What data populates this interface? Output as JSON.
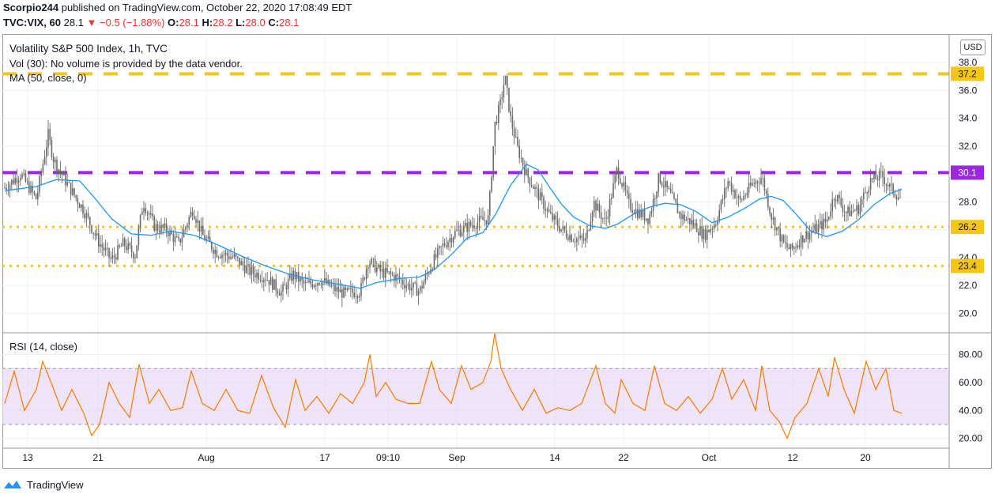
{
  "header": {
    "publisher": "Scorpio244",
    "publish_text": "published on TradingView.com, October 22, 2020 17:08:49 EDT",
    "symbol": "TVC:VIX, 60",
    "last": "28.1",
    "change": "−0.5 (−1.88%)",
    "o_label": "O:",
    "o_value": "28.1",
    "h_label": "H:",
    "h_value": "28.2",
    "l_label": "L:",
    "l_value": "28.0",
    "c_label": "C:",
    "c_value": "28.1"
  },
  "legend": {
    "title": "Volatility S&P 500 Index, 1h, TVC",
    "volume": "Vol (30): No volume is provided by the data vendor.",
    "ma": "MA (50, close, 0)",
    "rsi": "RSI (14, close)"
  },
  "currency": "USD",
  "footer": {
    "brand": "TradingView"
  },
  "colors": {
    "candle": "#6b6b6b",
    "ma_line": "#2196f3",
    "rsi_line": "#f57c00",
    "rsi_band": "#e8d9f7",
    "yellow_level": "#f5c518",
    "purple_level": "#9c27e0",
    "price_tag_yellow": "#f5c518",
    "price_tag_purple": "#9c27e0"
  },
  "chart_data": [
    {
      "type": "candlestick",
      "title": "Volatility S&P 500 Index, 1h, TVC",
      "y_ticks": [
        "20.0",
        "22.0",
        "24.0",
        "26.0",
        "28.0",
        "30.0",
        "32.0",
        "34.0",
        "36.0",
        "38.0"
      ],
      "ylim": [
        18.6,
        40.0
      ],
      "x_ticks": [
        "13",
        "21",
        "Aug",
        "17",
        "09:10",
        "Sep",
        "14",
        "22",
        "Oct",
        "12",
        "20"
      ],
      "levels": [
        {
          "value": 37.2,
          "label": "37.2",
          "style": "dashed",
          "color": "yellow"
        },
        {
          "value": 30.1,
          "label": "30.1",
          "style": "dashed",
          "color": "purple"
        },
        {
          "value": 26.2,
          "label": "26.2",
          "style": "dotted",
          "color": "yellow"
        },
        {
          "value": 23.4,
          "label": "23.4",
          "style": "dotted",
          "color": "yellow"
        }
      ],
      "close_series": [
        [
          0,
          29.0
        ],
        [
          20,
          30.0
        ],
        [
          40,
          28.2
        ],
        [
          55,
          32.8
        ],
        [
          62,
          31.0
        ],
        [
          80,
          29.2
        ],
        [
          100,
          27.4
        ],
        [
          118,
          25.2
        ],
        [
          135,
          23.8
        ],
        [
          150,
          25.0
        ],
        [
          165,
          24.2
        ],
        [
          175,
          28.0
        ],
        [
          190,
          26.2
        ],
        [
          205,
          26.0
        ],
        [
          220,
          25.0
        ],
        [
          238,
          27.5
        ],
        [
          250,
          25.6
        ],
        [
          268,
          24.4
        ],
        [
          290,
          24.0
        ],
        [
          310,
          23.0
        ],
        [
          330,
          22.6
        ],
        [
          350,
          21.5
        ],
        [
          365,
          22.8
        ],
        [
          380,
          22.0
        ],
        [
          400,
          22.4
        ],
        [
          415,
          21.8
        ],
        [
          430,
          21.4
        ],
        [
          450,
          21.6
        ],
        [
          460,
          23.8
        ],
        [
          475,
          23.0
        ],
        [
          495,
          22.6
        ],
        [
          510,
          22.0
        ],
        [
          525,
          21.6
        ],
        [
          540,
          23.5
        ],
        [
          555,
          24.9
        ],
        [
          570,
          25.8
        ],
        [
          585,
          26.2
        ],
        [
          600,
          26.6
        ],
        [
          612,
          26.8
        ],
        [
          620,
          33.5
        ],
        [
          627,
          35.0
        ],
        [
          633,
          37.0
        ],
        [
          640,
          34.0
        ],
        [
          648,
          32.0
        ],
        [
          660,
          30.0
        ],
        [
          675,
          28.5
        ],
        [
          690,
          27.0
        ],
        [
          705,
          26.0
        ],
        [
          720,
          25.4
        ],
        [
          735,
          25.2
        ],
        [
          745,
          28.0
        ],
        [
          760,
          26.5
        ],
        [
          775,
          30.4
        ],
        [
          790,
          27.8
        ],
        [
          800,
          27.3
        ],
        [
          815,
          26.8
        ],
        [
          828,
          29.8
        ],
        [
          842,
          28.5
        ],
        [
          855,
          27.0
        ],
        [
          870,
          26.5
        ],
        [
          885,
          25.6
        ],
        [
          900,
          26.6
        ],
        [
          915,
          29.5
        ],
        [
          930,
          28.0
        ],
        [
          945,
          29.2
        ],
        [
          958,
          29.8
        ],
        [
          970,
          27.0
        ],
        [
          985,
          25.0
        ],
        [
          995,
          24.5
        ],
        [
          1010,
          25.5
        ],
        [
          1025,
          26.0
        ],
        [
          1040,
          26.6
        ],
        [
          1050,
          28.6
        ],
        [
          1065,
          27.2
        ],
        [
          1080,
          27.5
        ],
        [
          1095,
          29.5
        ],
        [
          1110,
          29.9
        ],
        [
          1120,
          29.0
        ],
        [
          1128,
          28.6
        ],
        [
          1135,
          28.1
        ]
      ],
      "ma_series": [
        [
          0,
          28.8
        ],
        [
          40,
          29.1
        ],
        [
          65,
          29.6
        ],
        [
          95,
          29.5
        ],
        [
          115,
          28.2
        ],
        [
          135,
          26.8
        ],
        [
          160,
          25.7
        ],
        [
          185,
          25.6
        ],
        [
          210,
          25.9
        ],
        [
          240,
          25.6
        ],
        [
          270,
          24.9
        ],
        [
          300,
          24.1
        ],
        [
          330,
          23.4
        ],
        [
          360,
          22.8
        ],
        [
          390,
          22.4
        ],
        [
          420,
          22.1
        ],
        [
          450,
          21.8
        ],
        [
          470,
          22.2
        ],
        [
          500,
          22.5
        ],
        [
          525,
          22.6
        ],
        [
          545,
          23.2
        ],
        [
          565,
          24.2
        ],
        [
          585,
          25.4
        ],
        [
          605,
          25.8
        ],
        [
          620,
          27.0
        ],
        [
          640,
          29.2
        ],
        [
          660,
          30.7
        ],
        [
          675,
          30.3
        ],
        [
          690,
          29.0
        ],
        [
          705,
          27.8
        ],
        [
          720,
          26.9
        ],
        [
          740,
          26.3
        ],
        [
          760,
          26.1
        ],
        [
          775,
          26.4
        ],
        [
          795,
          27.1
        ],
        [
          815,
          27.6
        ],
        [
          835,
          27.9
        ],
        [
          855,
          27.8
        ],
        [
          875,
          27.3
        ],
        [
          895,
          26.5
        ],
        [
          915,
          26.9
        ],
        [
          935,
          27.5
        ],
        [
          955,
          28.2
        ],
        [
          970,
          28.4
        ],
        [
          985,
          28.1
        ],
        [
          1000,
          27.2
        ],
        [
          1020,
          25.9
        ],
        [
          1040,
          25.5
        ],
        [
          1060,
          25.9
        ],
        [
          1080,
          26.7
        ],
        [
          1100,
          27.8
        ],
        [
          1120,
          28.6
        ],
        [
          1135,
          28.9
        ]
      ]
    },
    {
      "type": "line",
      "title": "RSI (14, close)",
      "y_ticks": [
        "20.00",
        "40.00",
        "60.00",
        "80.00"
      ],
      "ylim": [
        13,
        95
      ],
      "band": [
        30,
        70
      ],
      "series": [
        {
          "values": [
            [
              0,
              45
            ],
            [
              12,
              68
            ],
            [
              25,
              40
            ],
            [
              40,
              55
            ],
            [
              48,
              75
            ],
            [
              60,
              58
            ],
            [
              72,
              40
            ],
            [
              85,
              55
            ],
            [
              100,
              38
            ],
            [
              110,
              22
            ],
            [
              120,
              30
            ],
            [
              132,
              60
            ],
            [
              145,
              45
            ],
            [
              158,
              35
            ],
            [
              170,
              73
            ],
            [
              183,
              45
            ],
            [
              195,
              55
            ],
            [
              210,
              40
            ],
            [
              225,
              42
            ],
            [
              236,
              68
            ],
            [
              250,
              45
            ],
            [
              265,
              40
            ],
            [
              280,
              55
            ],
            [
              295,
              40
            ],
            [
              310,
              38
            ],
            [
              325,
              65
            ],
            [
              340,
              42
            ],
            [
              355,
              28
            ],
            [
              368,
              62
            ],
            [
              380,
              40
            ],
            [
              395,
              50
            ],
            [
              410,
              38
            ],
            [
              425,
              52
            ],
            [
              440,
              45
            ],
            [
              455,
              60
            ],
            [
              462,
              80
            ],
            [
              470,
              50
            ],
            [
              482,
              60
            ],
            [
              495,
              48
            ],
            [
              510,
              45
            ],
            [
              525,
              45
            ],
            [
              540,
              75
            ],
            [
              550,
              55
            ],
            [
              565,
              45
            ],
            [
              578,
              72
            ],
            [
              590,
              55
            ],
            [
              605,
              60
            ],
            [
              615,
              75
            ],
            [
              620,
              95
            ],
            [
              628,
              70
            ],
            [
              640,
              55
            ],
            [
              655,
              40
            ],
            [
              670,
              55
            ],
            [
              685,
              38
            ],
            [
              700,
              42
            ],
            [
              715,
              40
            ],
            [
              730,
              45
            ],
            [
              740,
              60
            ],
            [
              748,
              72
            ],
            [
              760,
              45
            ],
            [
              772,
              38
            ],
            [
              780,
              62
            ],
            [
              795,
              45
            ],
            [
              810,
              40
            ],
            [
              822,
              72
            ],
            [
              835,
              45
            ],
            [
              850,
              40
            ],
            [
              865,
              50
            ],
            [
              880,
              38
            ],
            [
              895,
              48
            ],
            [
              908,
              70
            ],
            [
              920,
              48
            ],
            [
              935,
              62
            ],
            [
              950,
              40
            ],
            [
              958,
              72
            ],
            [
              968,
              40
            ],
            [
              980,
              32
            ],
            [
              990,
              20
            ],
            [
              1000,
              35
            ],
            [
              1015,
              45
            ],
            [
              1030,
              70
            ],
            [
              1042,
              50
            ],
            [
              1050,
              78
            ],
            [
              1062,
              55
            ],
            [
              1075,
              38
            ],
            [
              1090,
              75
            ],
            [
              1102,
              55
            ],
            [
              1115,
              70
            ],
            [
              1125,
              40
            ],
            [
              1135,
              38
            ]
          ]
        }
      ]
    }
  ]
}
